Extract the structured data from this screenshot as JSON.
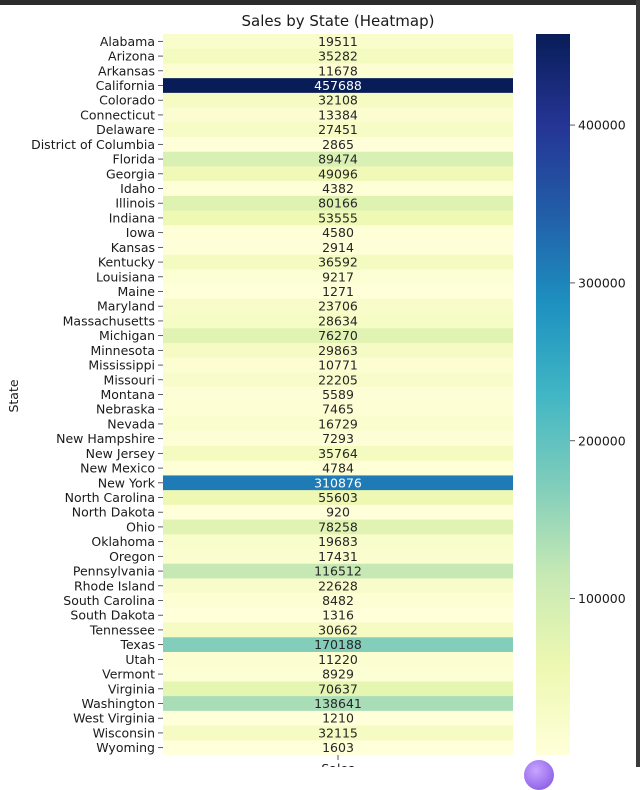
{
  "chart_data": {
    "type": "heatmap",
    "title": "Sales by State (Heatmap)",
    "ylabel": "State",
    "xlabel": "Sales",
    "categories": [
      "Alabama",
      "Arizona",
      "Arkansas",
      "California",
      "Colorado",
      "Connecticut",
      "Delaware",
      "District of Columbia",
      "Florida",
      "Georgia",
      "Idaho",
      "Illinois",
      "Indiana",
      "Iowa",
      "Kansas",
      "Kentucky",
      "Louisiana",
      "Maine",
      "Maryland",
      "Massachusetts",
      "Michigan",
      "Minnesota",
      "Mississippi",
      "Missouri",
      "Montana",
      "Nebraska",
      "Nevada",
      "New Hampshire",
      "New Jersey",
      "New Mexico",
      "New York",
      "North Carolina",
      "North Dakota",
      "Ohio",
      "Oklahoma",
      "Oregon",
      "Pennsylvania",
      "Rhode Island",
      "South Carolina",
      "South Dakota",
      "Tennessee",
      "Texas",
      "Utah",
      "Vermont",
      "Virginia",
      "Washington",
      "West Virginia",
      "Wisconsin",
      "Wyoming"
    ],
    "values": [
      19511,
      35282,
      11678,
      457688,
      32108,
      13384,
      27451,
      2865,
      89474,
      49096,
      4382,
      80166,
      53555,
      4580,
      2914,
      36592,
      9217,
      1271,
      23706,
      28634,
      76270,
      29863,
      10771,
      22205,
      5589,
      7465,
      16729,
      7293,
      35764,
      4784,
      310876,
      55603,
      920,
      78258,
      19683,
      17431,
      116512,
      22628,
      8482,
      1316,
      30662,
      170188,
      11220,
      8929,
      70637,
      138641,
      1210,
      32115,
      1603
    ],
    "colorbar": {
      "colormap": "YlGnBu",
      "range": [
        920,
        457688
      ],
      "ticks": [
        100000,
        200000,
        300000,
        400000
      ],
      "tick_labels": [
        "100000",
        "200000",
        "300000",
        "400000"
      ]
    }
  }
}
